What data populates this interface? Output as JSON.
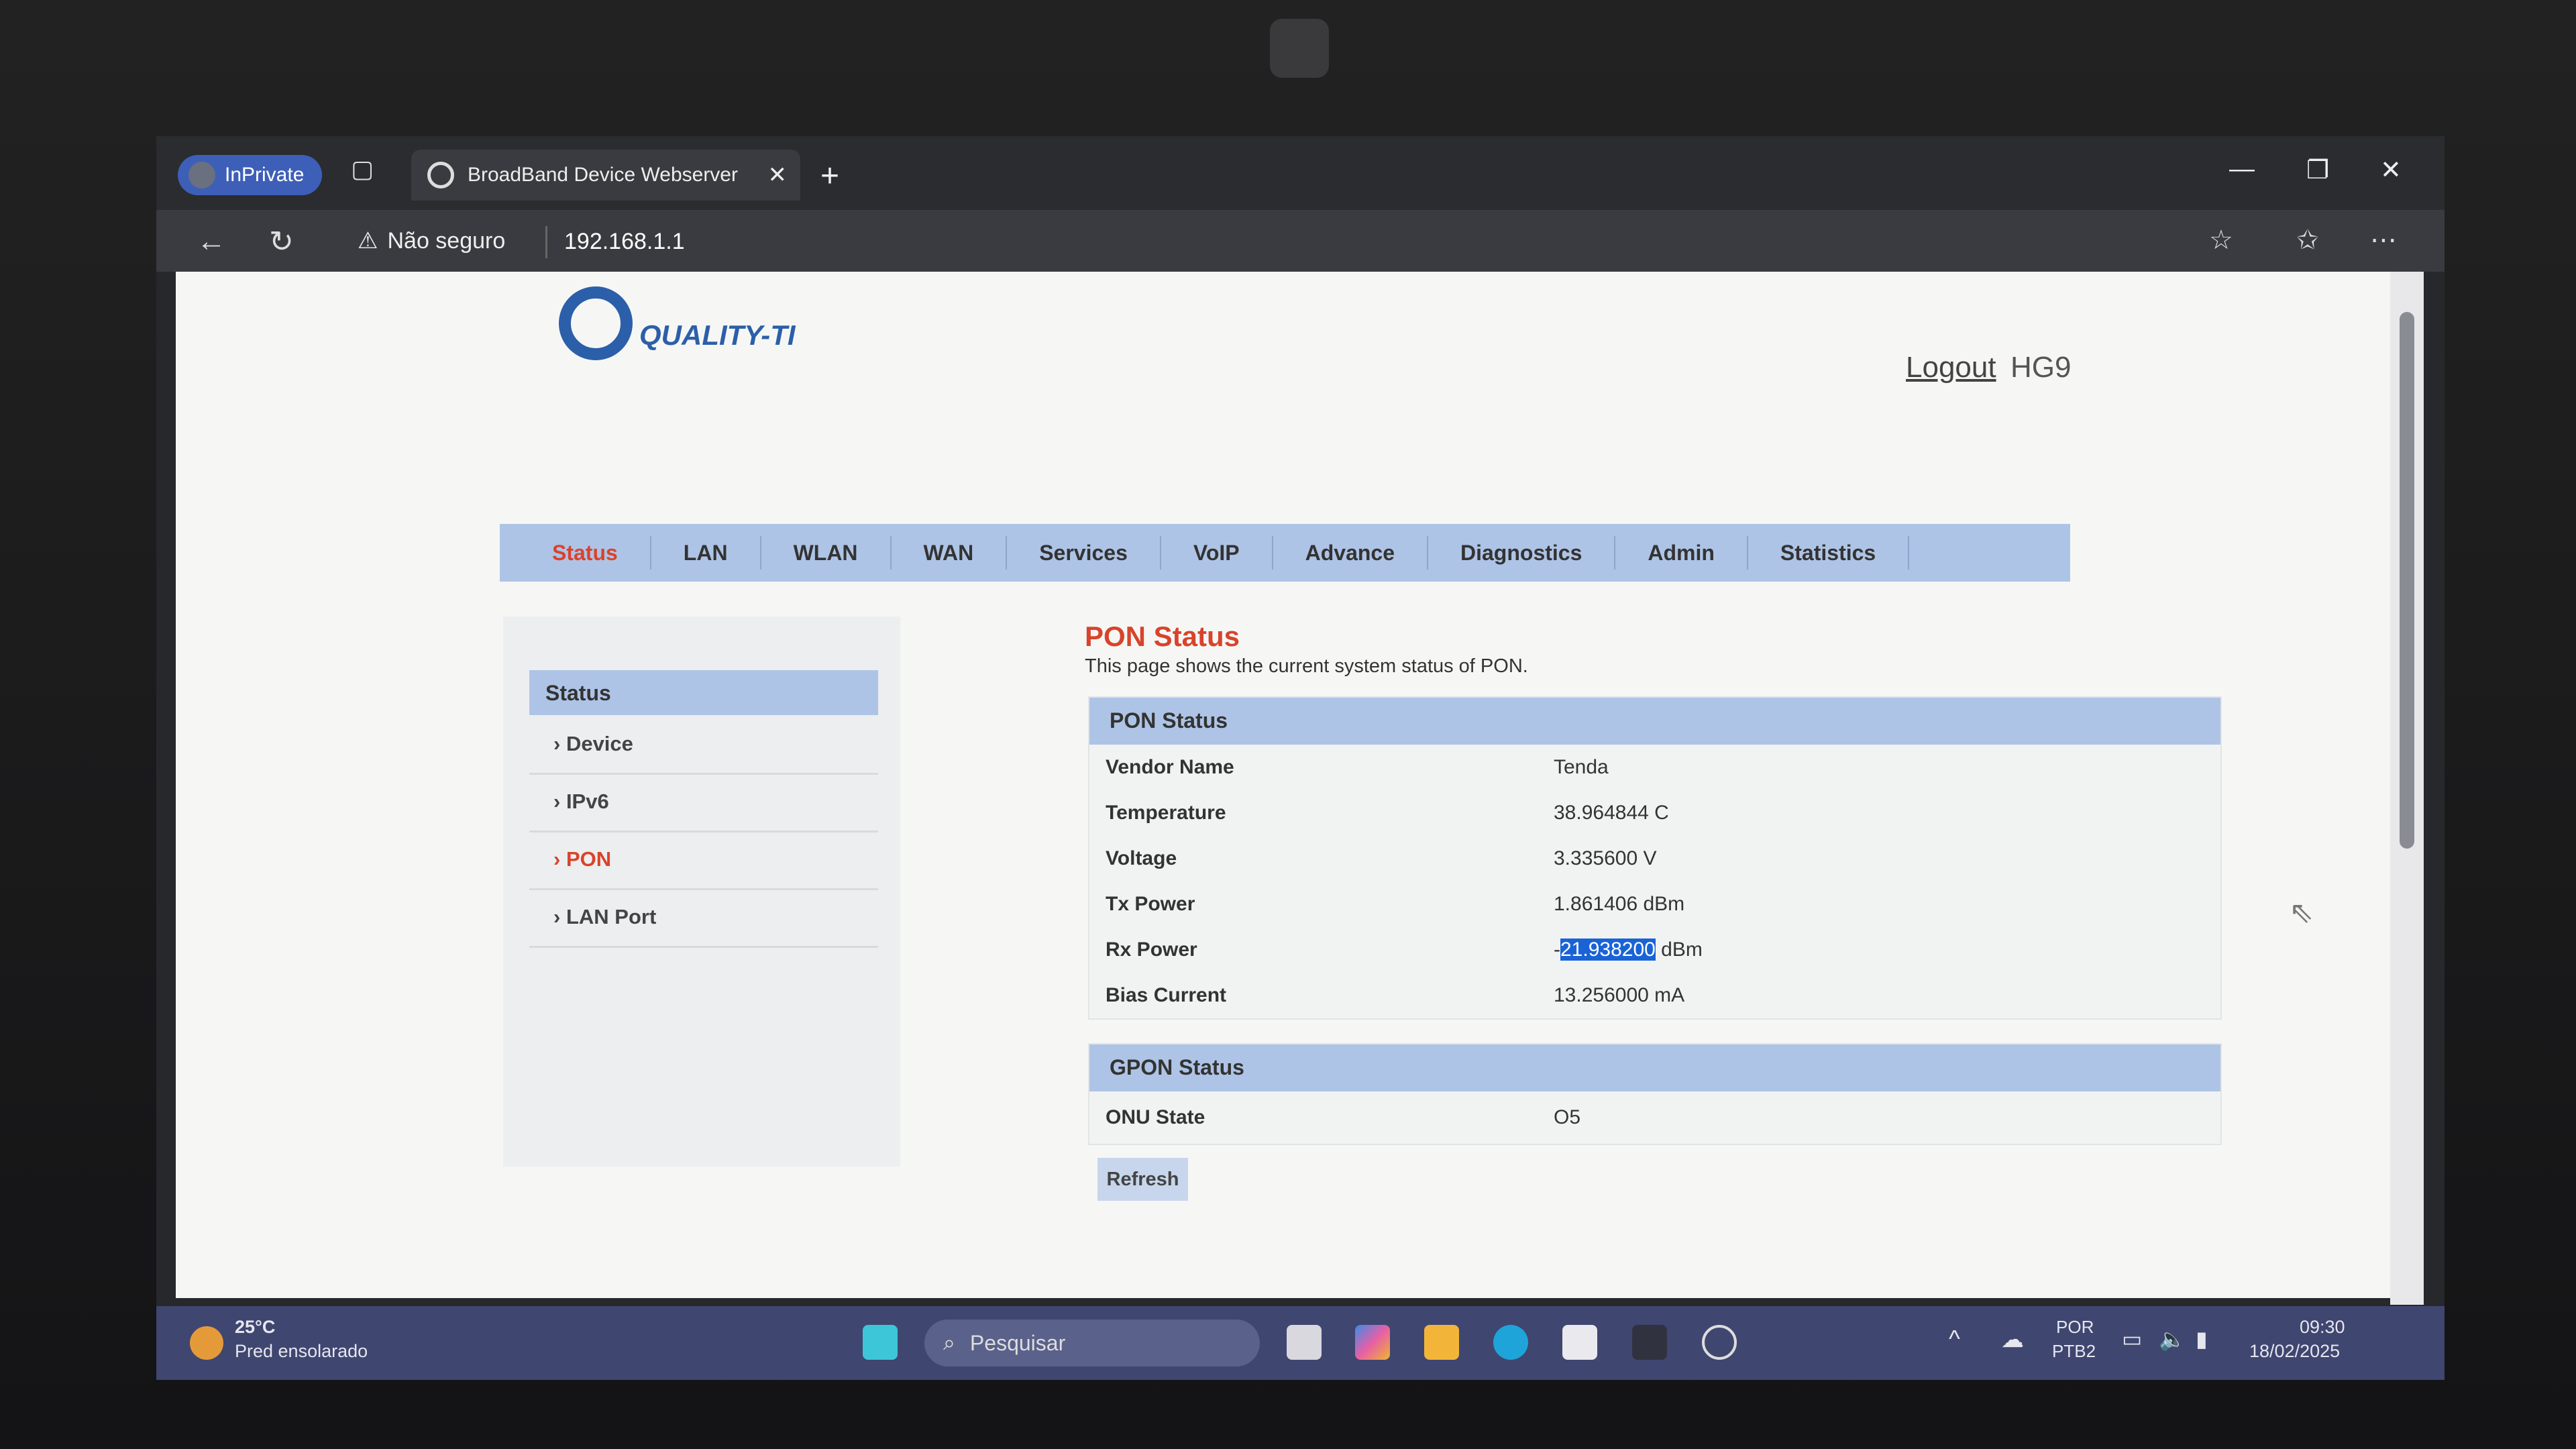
{
  "browser": {
    "inprivate_label": "InPrivate",
    "tab_title": "BroadBand Device Webserver",
    "security_label": "Não seguro",
    "url": "192.168.1.1"
  },
  "header": {
    "logo_text": "QUALITY-TI",
    "logout_label": "Logout",
    "model": "HG9"
  },
  "nav": {
    "items": [
      "Status",
      "LAN",
      "WLAN",
      "WAN",
      "Services",
      "VoIP",
      "Advance",
      "Diagnostics",
      "Admin",
      "Statistics"
    ],
    "active": "Status"
  },
  "sidebar": {
    "header": "Status",
    "items": [
      "Device",
      "IPv6",
      "PON",
      "LAN Port"
    ],
    "active": "PON"
  },
  "main": {
    "title": "PON Status",
    "description": "This page shows the current system status of PON.",
    "pon_table": {
      "header": "PON Status",
      "rows": [
        {
          "label": "Vendor Name",
          "value": "Tenda"
        },
        {
          "label": "Temperature",
          "value": "38.964844 C"
        },
        {
          "label": "Voltage",
          "value": "3.335600 V"
        },
        {
          "label": "Tx Power",
          "value": "1.861406 dBm"
        },
        {
          "label": "Rx Power",
          "value_prefix": "-",
          "value_selected": "21.938200",
          "value_suffix": " dBm"
        },
        {
          "label": "Bias Current",
          "value": "13.256000 mA"
        }
      ]
    },
    "gpon_table": {
      "header": "GPON Status",
      "rows": [
        {
          "label": "ONU State",
          "value": "O5"
        }
      ]
    },
    "refresh_label": "Refresh"
  },
  "taskbar": {
    "weather_temp": "25°C",
    "weather_desc": "Pred ensolarado",
    "search_placeholder": "Pesquisar",
    "lang": "POR",
    "layout": "PTB2",
    "time": "09:30",
    "date": "18/02/2025"
  },
  "colors": {
    "accent": "#d9432b",
    "nav_bg": "#aec4e6",
    "brand": "#2c5fa9",
    "selection": "#1a63d6"
  }
}
